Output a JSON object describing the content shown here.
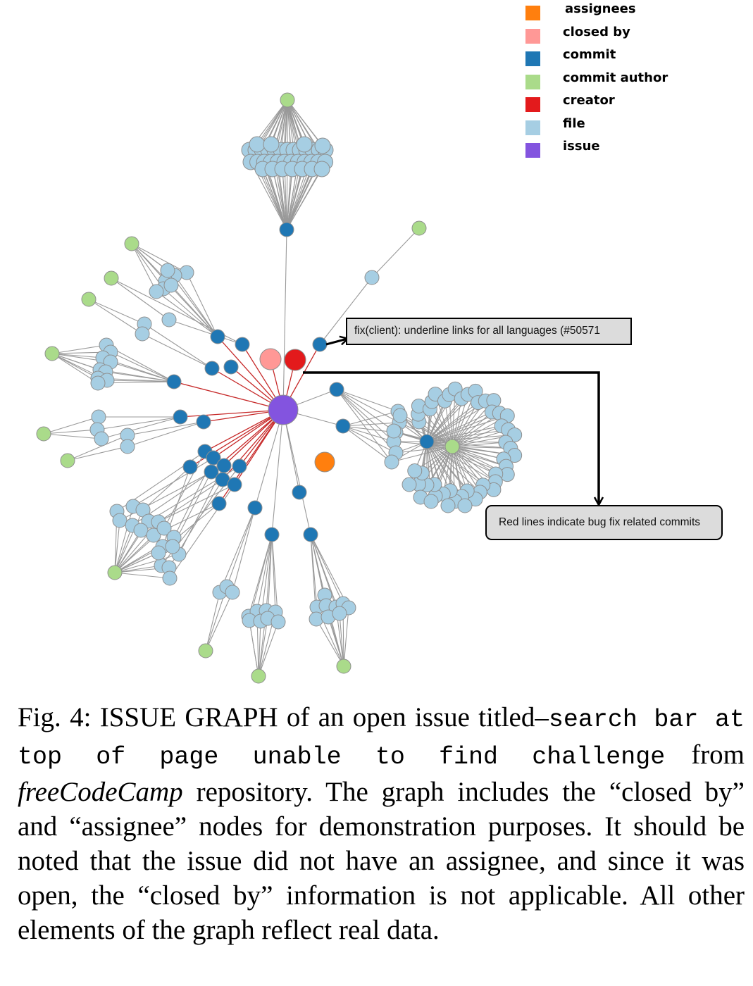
{
  "legend": {
    "items": [
      {
        "label": "assignees",
        "color": "#ff7f0e"
      },
      {
        "label": "closed by",
        "color": "#ff9896"
      },
      {
        "label": "commit",
        "color": "#1f77b4"
      },
      {
        "label": "commit author",
        "color": "#aadb8a"
      },
      {
        "label": "creator",
        "color": "#e31a1c"
      },
      {
        "label": "file",
        "color": "#a6cee3"
      },
      {
        "label": "issue",
        "color": "#8354df"
      }
    ]
  },
  "graph": {
    "node_colors": {
      "issue": "#8354df",
      "commit": "#1f77b4",
      "file": "#a6cee3",
      "author": "#aadb8a",
      "creator": "#e31a1c",
      "closed_by": "#ff9896",
      "assignee": "#ff7f0e"
    },
    "edge_colors": {
      "normal": "#999999",
      "bugfix": "#c62828"
    },
    "callouts": {
      "commit_message": "fix(client): underline links for all languages (#50571",
      "note": "Red lines indicate bug fix related commits"
    }
  },
  "caption": {
    "prefix": "Fig. 4: ",
    "sc1_first": "I",
    "sc1_rest": "SSUE",
    "sc2_first": "G",
    "sc2_rest": "RAPH",
    "middle": " of an open issue titled–",
    "issue_title": "search bar at top of page unable to find challenge",
    "from": " from ",
    "repo": "freeCodeCamp",
    "rest": " repository. The graph includes the “closed by” and “assignee” nodes for demonstration purposes. It should be noted that the issue did not have an assignee, and since it was open, the “closed by” information is not applicable. All other elements of the graph reflect real data."
  }
}
